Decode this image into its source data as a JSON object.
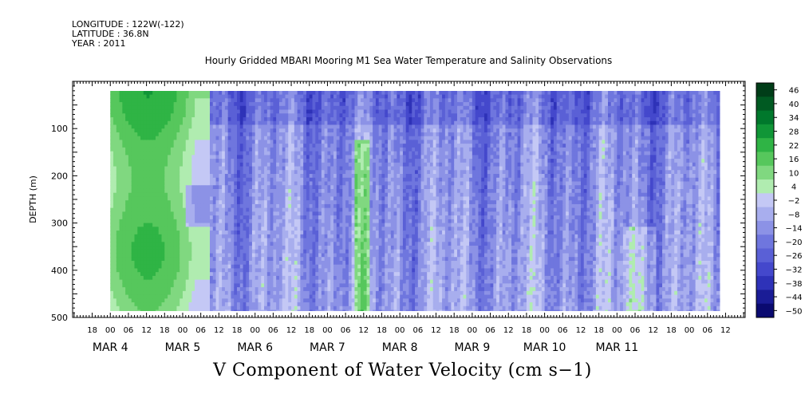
{
  "header": {
    "longitude": "LONGITUDE : 122W(-122)",
    "latitude": "LATITUDE : 36.8N",
    "year": "YEAR : 2011"
  },
  "chart_data": {
    "type": "heatmap",
    "title": "Hourly Gridded MBARI Mooring M1 Sea Water Temperature and Salinity Observations",
    "xlabel": "V Component of Water Velocity (cm s−1)",
    "ylabel": "DEPTH (m)",
    "ylim": [
      500,
      0
    ],
    "y_ticks": [
      "100",
      "200",
      "300",
      "400",
      "500"
    ],
    "y_tick_values": [
      100,
      200,
      300,
      400,
      500
    ],
    "hour_ticks": [
      "18",
      "00",
      "06",
      "12",
      "18",
      "00",
      "06",
      "12",
      "18",
      "00",
      "06",
      "12",
      "18",
      "00",
      "06",
      "12",
      "18",
      "00",
      "06",
      "12",
      "18",
      "00",
      "06",
      "12",
      "18",
      "00",
      "06",
      "12",
      "18",
      "00",
      "06",
      "12",
      "18",
      "00",
      "06",
      "12"
    ],
    "hour_tick_values": [
      -6,
      0,
      6,
      12,
      18,
      24,
      30,
      36,
      42,
      48,
      54,
      60,
      66,
      72,
      78,
      84,
      90,
      96,
      102,
      108,
      114,
      120,
      126,
      132,
      138,
      144,
      150,
      156,
      162,
      168,
      174,
      180,
      186,
      192,
      198,
      204
    ],
    "date_labels": [
      "MAR  4",
      "MAR  5",
      "MAR  6",
      "MAR  7",
      "MAR  8",
      "MAR  9",
      "MAR 10",
      "MAR 11"
    ],
    "date_label_values": [
      0,
      24,
      48,
      72,
      96,
      120,
      144,
      168
    ],
    "data_hour_range": [
      0,
      202
    ],
    "data_depth_range": [
      20,
      485
    ],
    "colorbar": {
      "labels": [
        "46",
        "40",
        "34",
        "28",
        "22",
        "16",
        "10",
        "4",
        "−2",
        "−8",
        "−14",
        "−20",
        "−26",
        "−32",
        "−38",
        "−44",
        "−50"
      ],
      "values": [
        46,
        40,
        34,
        28,
        22,
        16,
        10,
        4,
        -2,
        -8,
        -14,
        -20,
        -26,
        -32,
        -38,
        -44,
        -50
      ],
      "colors": [
        "#003d18",
        "#005a22",
        "#00782c",
        "#109637",
        "#2fb445",
        "#56c75c",
        "#80d880",
        "#b0ecb0",
        "#c4c8f5",
        "#a8aeee",
        "#8c92e6",
        "#6f76de",
        "#5a60d6",
        "#4448cc",
        "#2e32b8",
        "#1a1c96",
        "#0a0a70"
      ]
    },
    "grid": false,
    "legend": "colorbar-right"
  }
}
